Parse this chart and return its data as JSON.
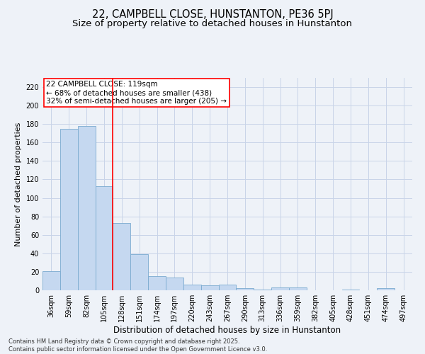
{
  "title": "22, CAMPBELL CLOSE, HUNSTANTON, PE36 5PJ",
  "subtitle": "Size of property relative to detached houses in Hunstanton",
  "xlabel": "Distribution of detached houses by size in Hunstanton",
  "ylabel": "Number of detached properties",
  "categories": [
    "36sqm",
    "59sqm",
    "82sqm",
    "105sqm",
    "128sqm",
    "151sqm",
    "174sqm",
    "197sqm",
    "220sqm",
    "243sqm",
    "267sqm",
    "290sqm",
    "313sqm",
    "336sqm",
    "359sqm",
    "382sqm",
    "405sqm",
    "428sqm",
    "451sqm",
    "474sqm",
    "497sqm"
  ],
  "values": [
    21,
    175,
    178,
    113,
    73,
    39,
    15,
    14,
    6,
    5,
    6,
    2,
    1,
    3,
    3,
    0,
    0,
    1,
    0,
    2,
    0
  ],
  "bar_color": "#c5d8f0",
  "bar_edge_color": "#7aaad0",
  "grid_color": "#c8d4e8",
  "background_color": "#eef2f8",
  "vline_x": 3.5,
  "vline_color": "red",
  "annotation_text": "22 CAMPBELL CLOSE: 119sqm\n← 68% of detached houses are smaller (438)\n32% of semi-detached houses are larger (205) →",
  "annotation_box_color": "white",
  "annotation_box_edge": "red",
  "ylim": [
    0,
    230
  ],
  "yticks": [
    0,
    20,
    40,
    60,
    80,
    100,
    120,
    140,
    160,
    180,
    200,
    220
  ],
  "footer": "Contains HM Land Registry data © Crown copyright and database right 2025.\nContains public sector information licensed under the Open Government Licence v3.0.",
  "title_fontsize": 10.5,
  "subtitle_fontsize": 9.5,
  "xlabel_fontsize": 8.5,
  "ylabel_fontsize": 8,
  "tick_fontsize": 7,
  "annotation_fontsize": 7.5,
  "footer_fontsize": 6
}
